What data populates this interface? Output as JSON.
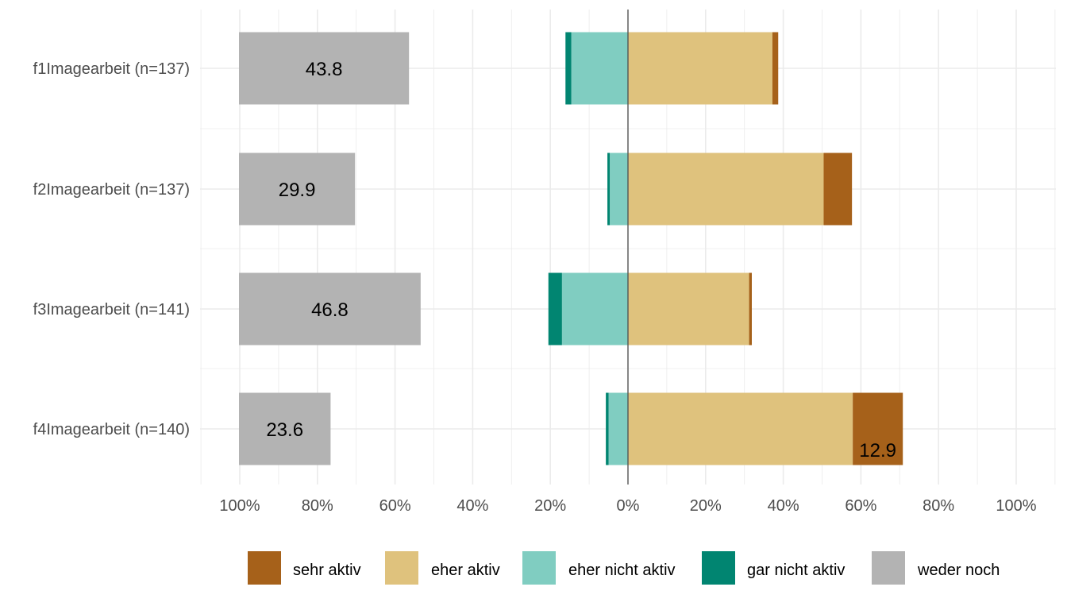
{
  "chart_data": {
    "type": "bar",
    "subtype": "diverging-stacked-horizontal",
    "categories": [
      "f1Imagearbeit (n=137)",
      "f2Imagearbeit (n=137)",
      "f3Imagearbeit (n=141)",
      "f4Imagearbeit (n=140)"
    ],
    "series": [
      {
        "name": "sehr aktiv",
        "side": "positive",
        "color": "#a6611a",
        "values": [
          1.5,
          7.3,
          0.7,
          12.9
        ]
      },
      {
        "name": "eher aktiv",
        "side": "positive",
        "color": "#dfc27d",
        "values": [
          37.2,
          50.4,
          31.2,
          57.9
        ]
      },
      {
        "name": "eher nicht aktiv",
        "side": "negative",
        "color": "#80cdc1",
        "values": [
          14.6,
          4.7,
          17.0,
          5.0
        ]
      },
      {
        "name": "gar nicht aktiv",
        "side": "negative",
        "color": "#018571",
        "values": [
          1.5,
          0.6,
          3.5,
          0.7
        ]
      },
      {
        "name": "weder noch",
        "side": "separate-left",
        "color": "#b3b3b3",
        "values": [
          43.8,
          29.9,
          46.8,
          23.6
        ]
      }
    ],
    "data_labels": [
      {
        "series": "weder noch",
        "category": "f1Imagearbeit (n=137)",
        "text": "43.8"
      },
      {
        "series": "weder noch",
        "category": "f2Imagearbeit (n=137)",
        "text": "29.9"
      },
      {
        "series": "weder noch",
        "category": "f3Imagearbeit (n=141)",
        "text": "46.8"
      },
      {
        "series": "weder noch",
        "category": "f4Imagearbeit (n=140)",
        "text": "23.6"
      },
      {
        "series": "sehr aktiv",
        "category": "f4Imagearbeit (n=140)",
        "text": "12.9"
      }
    ],
    "x_ticks": [
      "100%",
      "80%",
      "60%",
      "40%",
      "20%",
      "0%",
      "20%",
      "40%",
      "60%",
      "80%",
      "100%"
    ],
    "xlim": [
      -100,
      100
    ],
    "grid": true,
    "legend_position": "bottom",
    "title": "",
    "xlabel": "",
    "ylabel": ""
  }
}
